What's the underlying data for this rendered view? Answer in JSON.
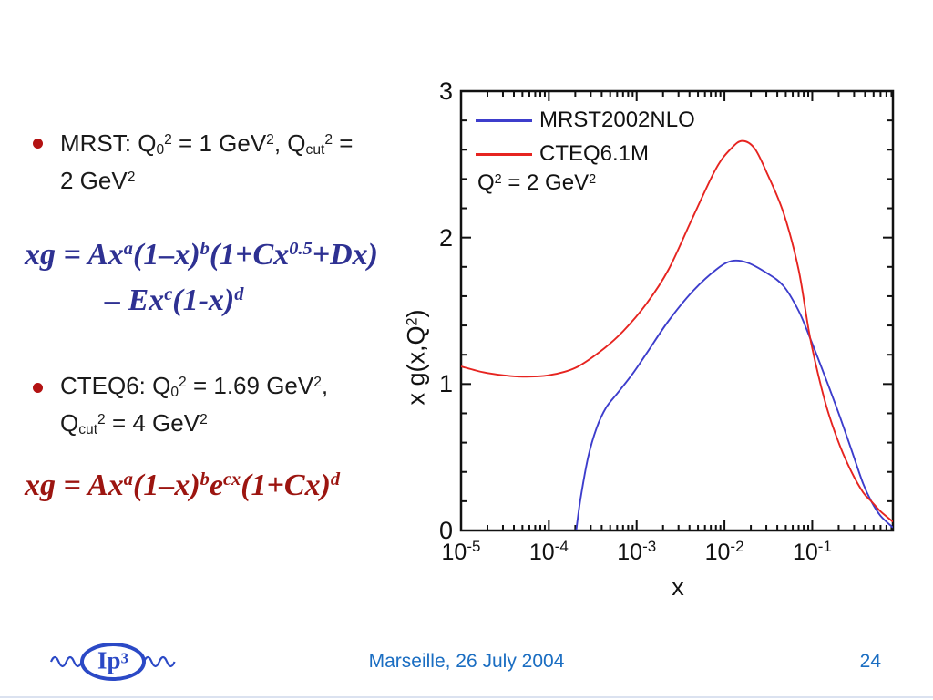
{
  "slide": {
    "colors": {
      "bullet": "#b31212",
      "formula_blue": "#2e3192",
      "formula_red": "#9c1510",
      "footer_text": "#1b6ec2",
      "logo": "#2b49c6",
      "ink": "#111111"
    },
    "bullets": [
      {
        "lines": [
          [
            {
              "t": "MRST: Q"
            },
            {
              "t": "0",
              "s": "sub"
            },
            {
              "t": "2",
              "s": "sup"
            },
            {
              "t": " = 1 GeV"
            },
            {
              "t": "2",
              "s": "sup"
            },
            {
              "t": ", Q"
            },
            {
              "t": "cut",
              "s": "sub"
            },
            {
              "t": "2",
              "s": "sup"
            },
            {
              "t": " ="
            }
          ],
          [
            {
              "t": "2 GeV"
            },
            {
              "t": "2",
              "s": "sup"
            }
          ]
        ]
      },
      {
        "lines": [
          [
            {
              "t": "CTEQ6: Q"
            },
            {
              "t": "0",
              "s": "sub"
            },
            {
              "t": "2",
              "s": "sup"
            },
            {
              "t": " = 1.69 GeV"
            },
            {
              "t": "2",
              "s": "sup"
            },
            {
              "t": ","
            }
          ],
          [
            {
              "t": "Q"
            },
            {
              "t": "cut",
              "s": "sub"
            },
            {
              "t": "2",
              "s": "sup"
            },
            {
              "t": " = 4 GeV"
            },
            {
              "t": "2",
              "s": "sup"
            }
          ]
        ]
      }
    ],
    "formulas": {
      "mrst": {
        "lines": [
          [
            {
              "t": "xg = Ax"
            },
            {
              "t": "a",
              "s": "sup"
            },
            {
              "t": "(1–x)"
            },
            {
              "t": "b",
              "s": "sup"
            },
            {
              "t": "(1+Cx"
            },
            {
              "t": "0.5",
              "s": "sup"
            },
            {
              "t": "+Dx)"
            }
          ],
          [
            {
              "t": "– Ex"
            },
            {
              "t": "c",
              "s": "sup"
            },
            {
              "t": "(1-x)"
            },
            {
              "t": "d",
              "s": "sup"
            }
          ]
        ]
      },
      "cteq": {
        "lines": [
          [
            {
              "t": "xg = Ax"
            },
            {
              "t": "a",
              "s": "sup"
            },
            {
              "t": "(1–x)"
            },
            {
              "t": "b",
              "s": "sup"
            },
            {
              "t": "e"
            },
            {
              "t": "cx",
              "s": "sup"
            },
            {
              "t": "(1+Cx)"
            },
            {
              "t": "d",
              "s": "sup"
            }
          ]
        ]
      }
    }
  },
  "chart_data": {
    "type": "line",
    "x_scale": "log",
    "xlim": [
      1e-05,
      0.83
    ],
    "ylim": [
      0,
      3
    ],
    "xlabel": "x",
    "ylabel": "x g(x,Q^2)",
    "ylabel_segments": [
      {
        "t": "x g(x,Q"
      },
      {
        "t": "2",
        "s": "sup"
      },
      {
        "t": ")"
      }
    ],
    "annotation": "Q^2 = 2 GeV^2",
    "annotation_segments": [
      {
        "t": "Q"
      },
      {
        "t": "2",
        "s": "sup"
      },
      {
        "t": " = 2 GeV"
      },
      {
        "t": "2",
        "s": "sup"
      }
    ],
    "grid": false,
    "legend_position": "top-left",
    "x_ticks": [
      {
        "value": 1e-05,
        "segments": [
          {
            "t": "10"
          },
          {
            "t": "-5",
            "s": "sup"
          }
        ]
      },
      {
        "value": 0.0001,
        "segments": [
          {
            "t": "10"
          },
          {
            "t": "-4",
            "s": "sup"
          }
        ]
      },
      {
        "value": 0.001,
        "segments": [
          {
            "t": "10"
          },
          {
            "t": "-3",
            "s": "sup"
          }
        ]
      },
      {
        "value": 0.01,
        "segments": [
          {
            "t": "10"
          },
          {
            "t": "-2",
            "s": "sup"
          }
        ]
      },
      {
        "value": 0.1,
        "segments": [
          {
            "t": "10"
          },
          {
            "t": "-1",
            "s": "sup"
          }
        ]
      }
    ],
    "y_ticks": [
      {
        "value": 0,
        "label": "0"
      },
      {
        "value": 1,
        "label": "1"
      },
      {
        "value": 2,
        "label": "2"
      },
      {
        "value": 3,
        "label": "3"
      }
    ],
    "y_minor_step": 0.2,
    "series": [
      {
        "name": "MRST2002NLO",
        "color": "#3d3dcc",
        "x": [
          0.000205,
          0.00023,
          0.00028,
          0.00035,
          0.00045,
          0.00061,
          0.0009,
          0.0013,
          0.0023,
          0.0043,
          0.008,
          0.012,
          0.018,
          0.03,
          0.047,
          0.07,
          0.095,
          0.14,
          0.2,
          0.28,
          0.38,
          0.47,
          0.6,
          0.83
        ],
        "y": [
          0.0,
          0.22,
          0.5,
          0.7,
          0.84,
          0.94,
          1.07,
          1.21,
          1.43,
          1.63,
          1.78,
          1.84,
          1.83,
          1.76,
          1.67,
          1.5,
          1.31,
          1.05,
          0.8,
          0.55,
          0.32,
          0.2,
          0.1,
          0.02
        ]
      },
      {
        "name": "CTEQ6.1M",
        "color": "#e62420",
        "x": [
          1e-05,
          1.8e-05,
          3e-05,
          5e-05,
          0.0001,
          0.0002,
          0.0004,
          0.0007,
          0.0013,
          0.0023,
          0.0043,
          0.008,
          0.012,
          0.016,
          0.022,
          0.03,
          0.047,
          0.07,
          0.095,
          0.14,
          0.2,
          0.28,
          0.38,
          0.47,
          0.6,
          0.83
        ],
        "y": [
          1.12,
          1.08,
          1.06,
          1.05,
          1.06,
          1.11,
          1.23,
          1.36,
          1.55,
          1.78,
          2.13,
          2.47,
          2.61,
          2.66,
          2.61,
          2.45,
          2.17,
          1.78,
          1.31,
          0.88,
          0.6,
          0.4,
          0.26,
          0.2,
          0.13,
          0.06
        ]
      }
    ]
  },
  "footer": {
    "logo": {
      "segments": [
        {
          "t": "Ip"
        },
        {
          "t": "3",
          "s": "sup"
        }
      ]
    },
    "date": "Marseille, 26 July 2004",
    "page_number": "24"
  }
}
